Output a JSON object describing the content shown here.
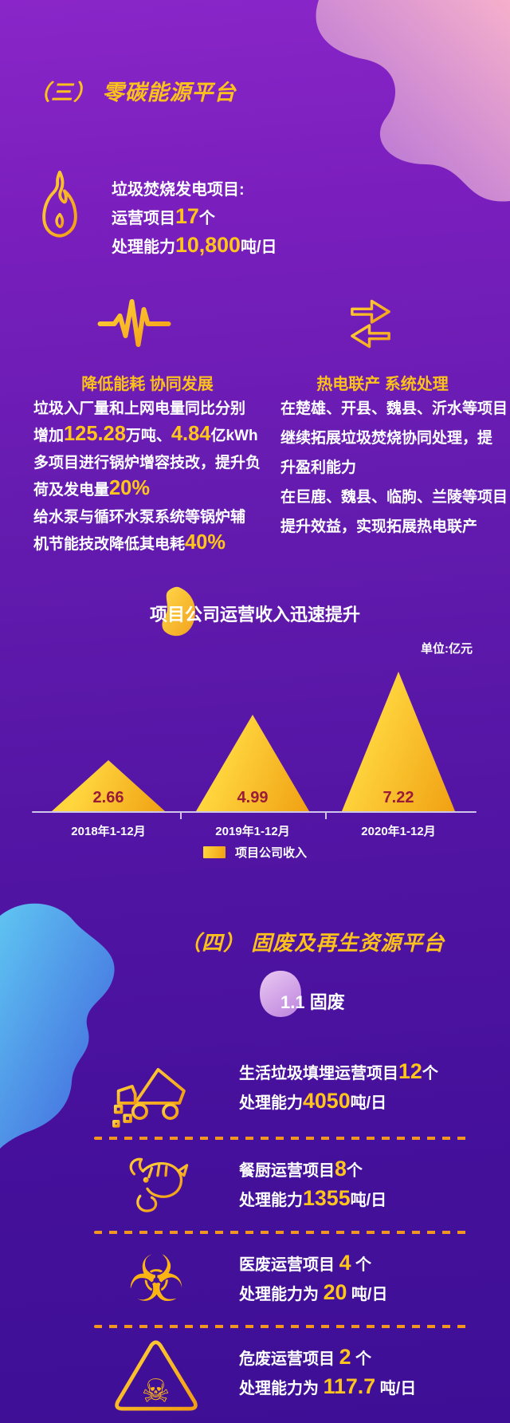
{
  "colors": {
    "accent_yellow": "#FFC51C",
    "value_label_maroon": "#9A1B38",
    "dash_orange": "#F2961D",
    "triangle_gradient": [
      "#FFD63E",
      "#F0A013"
    ],
    "baseline": "#CFC5EB"
  },
  "section3": {
    "title": "（三） 零碳能源平台",
    "incineration": {
      "icon": "flame-icon",
      "lines": [
        [
          {
            "t": "垃圾焚烧发电项目:"
          }
        ],
        [
          {
            "t": "运营项目"
          },
          {
            "t": "17",
            "hl": true
          },
          {
            "t": "个"
          }
        ],
        [
          {
            "t": "处理能力"
          },
          {
            "t": "10,800",
            "hl": true
          },
          {
            "t": "吨/日"
          }
        ]
      ]
    },
    "columns": [
      {
        "icon": "pulse-icon",
        "heading": "降低能耗 协同发展",
        "body": [
          {
            "t": "垃圾入厂量和上网电量同比分别"
          },
          {
            "br": true
          },
          {
            "t": "增加"
          },
          {
            "t": "125.28",
            "hl": true
          },
          {
            "t": "万吨、"
          },
          {
            "t": "4.84",
            "hl": true
          },
          {
            "t": "亿kWh"
          },
          {
            "br": true
          },
          {
            "t": "多项目进行锅炉增容技改，提升负"
          },
          {
            "br": true
          },
          {
            "t": "荷及发电量"
          },
          {
            "t": "20%",
            "hl": true
          },
          {
            "br": true
          },
          {
            "t": "给水泵与循环水泵系统等锅炉辅"
          },
          {
            "br": true
          },
          {
            "t": "机节能技改降低其电耗"
          },
          {
            "t": "40%",
            "hl": true
          }
        ]
      },
      {
        "icon": "exchange-arrows-icon",
        "heading": "热电联产 系统处理",
        "body": [
          {
            "t": "在楚雄、开县、魏县、沂水等项目"
          },
          {
            "br": true
          },
          {
            "t": "继续拓展垃圾焚烧协同处理，提"
          },
          {
            "br": true
          },
          {
            "t": "升盈利能力"
          },
          {
            "br": true
          },
          {
            "t": "在巨鹿、魏县、临朐、兰陵等项目"
          },
          {
            "br": true
          },
          {
            "t": "提升效益，实现拓展热电联产"
          }
        ]
      }
    ]
  },
  "chart_data": {
    "type": "bar",
    "variant": "triangle-peaks",
    "title": "项目公司运营收入迅速提升",
    "unit_label": "单位:亿元",
    "categories": [
      "2018年1-12月",
      "2019年1-12月",
      "2020年1-12月"
    ],
    "values": [
      2.66,
      4.99,
      7.22
    ],
    "series_name": "项目公司收入",
    "legend": [
      "项目公司收入"
    ],
    "ylim": [
      0,
      7.22
    ],
    "grid": false,
    "legend_position": "bottom-center"
  },
  "section4": {
    "title": "（四） 固废及再生资源平台",
    "badge": "1.1 固废",
    "items": [
      {
        "icon": "dump-truck-icon",
        "lines": [
          [
            {
              "t": "生活垃圾填埋运营项目"
            },
            {
              "t": "12",
              "hl": true
            },
            {
              "t": "个"
            }
          ],
          [
            {
              "t": "处理能力"
            },
            {
              "t": "4050",
              "hl": true
            },
            {
              "t": "吨/日"
            }
          ]
        ]
      },
      {
        "icon": "food-waste-icon",
        "lines": [
          [
            {
              "t": "餐厨运营项目"
            },
            {
              "t": "8",
              "hl": true
            },
            {
              "t": "个"
            }
          ],
          [
            {
              "t": "处理能力"
            },
            {
              "t": "1355",
              "hl": true
            },
            {
              "t": "吨/日"
            }
          ]
        ]
      },
      {
        "icon": "biohazard-icon",
        "lines": [
          [
            {
              "t": "医废运营项目 "
            },
            {
              "t": "4",
              "hl": true
            },
            {
              "t": " 个"
            }
          ],
          [
            {
              "t": "处理能力为 "
            },
            {
              "t": "20",
              "hl": true
            },
            {
              "t": " 吨/日"
            }
          ]
        ]
      },
      {
        "icon": "hazard-skull-icon",
        "lines": [
          [
            {
              "t": "危废运营项目 "
            },
            {
              "t": "2",
              "hl": true
            },
            {
              "t": " 个"
            }
          ],
          [
            {
              "t": "处理能力为 "
            },
            {
              "t": "117.7",
              "hl": true
            },
            {
              "t": " 吨/日"
            }
          ]
        ]
      }
    ]
  }
}
